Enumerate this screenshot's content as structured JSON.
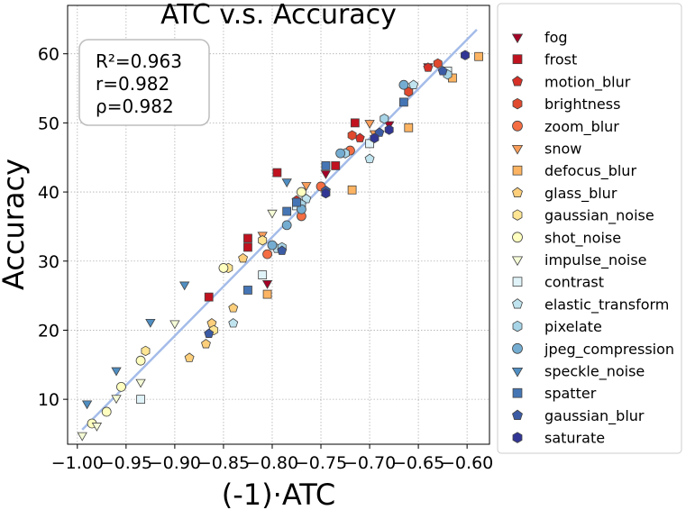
{
  "chart_data": {
    "type": "scatter",
    "title": "ATC  v.s.  Accuracy",
    "xlabel": "(-1)·ATC",
    "ylabel": "Accuracy",
    "xlim": [
      -1.01,
      -0.577
    ],
    "ylim": [
      3.5,
      67
    ],
    "xticks": [
      -1.0,
      -0.95,
      -0.9,
      -0.85,
      -0.8,
      -0.75,
      -0.7,
      -0.65,
      -0.6
    ],
    "xtick_labels": [
      "−1.00",
      "−0.95",
      "−0.90",
      "−0.85",
      "−0.80",
      "−0.75",
      "−0.70",
      "−0.65",
      "−0.60"
    ],
    "yticks": [
      10,
      20,
      30,
      40,
      50,
      60
    ],
    "ytick_labels": [
      "10",
      "20",
      "30",
      "40",
      "50",
      "60"
    ],
    "grid": true,
    "legend_placement": "outside-right",
    "stats_box": [
      "R²=0.963",
      "r=0.982",
      "ρ=0.982"
    ],
    "fit_line": {
      "x": [
        -0.995,
        -0.59
      ],
      "y": [
        5.6,
        63.5
      ],
      "color": "#a4bce9"
    },
    "series": [
      {
        "name": "fog",
        "marker": "v",
        "color": "#a50026",
        "x": [
          -0.805,
          -0.745,
          -0.68,
          -0.64
        ],
        "y": [
          26.8,
          42.7,
          49.8,
          58.2
        ]
      },
      {
        "name": "frost",
        "marker": "s",
        "color": "#c1121f",
        "x": [
          -0.865,
          -0.825,
          -0.825,
          -0.795,
          -0.735,
          -0.715
        ],
        "y": [
          24.8,
          33.3,
          32.0,
          42.8,
          43.8,
          50.0
        ]
      },
      {
        "name": "motion_blur",
        "marker": "p",
        "color": "#d73027",
        "x": [
          -0.775,
          -0.71,
          -0.64
        ],
        "y": [
          38.8,
          47.8,
          58.0
        ]
      },
      {
        "name": "brightness",
        "marker": "h",
        "color": "#e04a2e",
        "x": [
          -0.718,
          -0.66,
          -0.63
        ],
        "y": [
          48.2,
          54.5,
          58.6
        ]
      },
      {
        "name": "zoom_blur",
        "marker": "o",
        "color": "#f46d43",
        "x": [
          -0.805,
          -0.77,
          -0.75,
          -0.72
        ],
        "y": [
          31.0,
          36.5,
          40.8,
          46.0
        ]
      },
      {
        "name": "snow",
        "marker": "v",
        "color": "#f99d59",
        "x": [
          -0.81,
          -0.765,
          -0.7,
          -0.695
        ],
        "y": [
          33.8,
          41.0,
          50.0,
          48.5
        ]
      },
      {
        "name": "defocus_blur",
        "marker": "s",
        "color": "#fdb462",
        "x": [
          -0.805,
          -0.718,
          -0.66,
          -0.615,
          -0.588
        ],
        "y": [
          25.2,
          40.3,
          49.3,
          56.5,
          59.6
        ]
      },
      {
        "name": "glass_blur",
        "marker": "p",
        "color": "#fdcf7b",
        "x": [
          -0.885,
          -0.868,
          -0.862,
          -0.84,
          -0.83
        ],
        "y": [
          16.0,
          18.0,
          21.0,
          23.2,
          30.4
        ]
      },
      {
        "name": "gaussian_noise",
        "marker": "h",
        "color": "#fee593",
        "x": [
          -0.93,
          -0.86,
          -0.845,
          -0.81
        ],
        "y": [
          17.0,
          20.0,
          29.0,
          33.0
        ]
      },
      {
        "name": "shot_noise",
        "marker": "o",
        "color": "#ffffbf",
        "x": [
          -0.985,
          -0.97,
          -0.955,
          -0.935,
          -0.85,
          -0.77
        ],
        "y": [
          6.5,
          8.2,
          11.8,
          15.6,
          29.0,
          40.0
        ]
      },
      {
        "name": "impulse_noise",
        "marker": "v",
        "color": "#f5fbd6",
        "x": [
          -0.995,
          -0.98,
          -0.96,
          -0.935,
          -0.9,
          -0.8
        ],
        "y": [
          4.8,
          6.2,
          10.2,
          12.5,
          21.0,
          37.0
        ]
      },
      {
        "name": "contrast",
        "marker": "s",
        "color": "#e0f3f8",
        "x": [
          -0.935,
          -0.81,
          -0.775,
          -0.7,
          -0.62
        ],
        "y": [
          10.0,
          28.0,
          38.0,
          47.0,
          57.5
        ]
      },
      {
        "name": "elastic_transform",
        "marker": "p",
        "color": "#c0e4ef",
        "x": [
          -0.84,
          -0.795,
          -0.765,
          -0.7,
          -0.655
        ],
        "y": [
          21.0,
          31.8,
          39.0,
          44.8,
          55.5
        ]
      },
      {
        "name": "pixelate",
        "marker": "h",
        "color": "#a7d4e7",
        "x": [
          -0.79,
          -0.77,
          -0.725,
          -0.685,
          -0.62
        ],
        "y": [
          32.0,
          38.2,
          45.6,
          50.6,
          57.0
        ]
      },
      {
        "name": "jpeg_compression",
        "marker": "o",
        "color": "#74add1",
        "x": [
          -0.8,
          -0.785,
          -0.77,
          -0.73,
          -0.665
        ],
        "y": [
          32.3,
          35.2,
          37.5,
          45.6,
          55.5
        ]
      },
      {
        "name": "speckle_noise",
        "marker": "v",
        "color": "#4f8ec2",
        "x": [
          -0.99,
          -0.96,
          -0.925,
          -0.89,
          -0.785
        ],
        "y": [
          9.4,
          14.2,
          21.2,
          26.6,
          41.5
        ]
      },
      {
        "name": "spatter",
        "marker": "s",
        "color": "#4575b4",
        "x": [
          -0.825,
          -0.785,
          -0.775,
          -0.745,
          -0.665
        ],
        "y": [
          25.8,
          37.2,
          38.5,
          43.8,
          53.0
        ]
      },
      {
        "name": "gaussian_blur",
        "marker": "p",
        "color": "#3b5ba5",
        "x": [
          -0.865,
          -0.79,
          -0.745,
          -0.69,
          -0.625
        ],
        "y": [
          19.5,
          31.5,
          40.2,
          48.6,
          57.5
        ]
      },
      {
        "name": "saturate",
        "marker": "h",
        "color": "#313695",
        "x": [
          -0.745,
          -0.695,
          -0.68,
          -0.602
        ],
        "y": [
          39.8,
          47.8,
          49.0,
          59.8
        ]
      }
    ]
  }
}
